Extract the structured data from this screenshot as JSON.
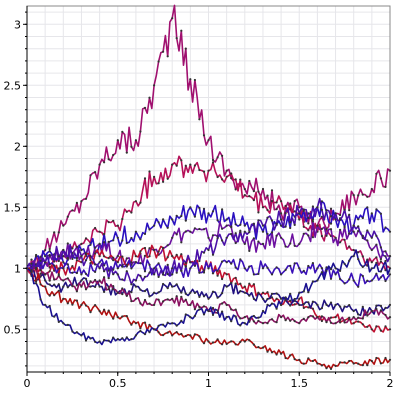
{
  "chart_data": {
    "type": "line",
    "title": "",
    "xlabel": "",
    "ylabel": "",
    "xlim": [
      0,
      2.0
    ],
    "ylim": [
      0.15,
      3.15
    ],
    "grid": true,
    "x_ticks": [
      0,
      0.5,
      1,
      1.5,
      2
    ],
    "x_tick_labels": [
      "0",
      "0.5",
      "1",
      "1.5",
      "2"
    ],
    "y_ticks": [
      0.5,
      1,
      1.5,
      2,
      2.5,
      3
    ],
    "y_tick_labels": [
      "0.5",
      "1",
      "1.5",
      "2",
      "2.5",
      "3"
    ],
    "x": [
      0,
      0.1,
      0.2,
      0.3,
      0.4,
      0.5,
      0.6,
      0.7,
      0.8,
      0.9,
      1.0,
      1.1,
      1.2,
      1.3,
      1.4,
      1.5,
      1.6,
      1.7,
      1.8,
      1.9,
      2.0
    ],
    "series": [
      {
        "color": "#a0106f",
        "values": [
          1.0,
          1.15,
          1.35,
          1.55,
          1.85,
          2.05,
          2.05,
          2.5,
          3.05,
          2.55,
          2.05,
          1.8,
          1.65,
          1.65,
          1.45,
          1.5,
          1.35,
          1.45,
          1.6,
          1.65,
          1.8
        ]
      },
      {
        "color": "#b51058",
        "values": [
          1.0,
          1.05,
          1.1,
          1.2,
          1.3,
          1.35,
          1.55,
          1.75,
          1.85,
          1.85,
          1.8,
          1.75,
          1.6,
          1.5,
          1.55,
          1.4,
          1.3,
          1.25,
          1.15,
          1.05,
          1.0
        ]
      },
      {
        "color": "#2a10c0",
        "values": [
          1.0,
          1.1,
          1.05,
          1.15,
          1.2,
          1.25,
          1.3,
          1.35,
          1.4,
          1.5,
          1.45,
          1.4,
          1.35,
          1.3,
          1.35,
          1.45,
          1.5,
          1.4,
          1.35,
          1.45,
          1.3
        ]
      },
      {
        "color": "#6c10a0",
        "values": [
          1.0,
          1.05,
          1.15,
          1.1,
          1.2,
          1.1,
          1.05,
          1.15,
          1.25,
          1.3,
          1.25,
          1.35,
          1.2,
          1.2,
          1.25,
          1.2,
          1.35,
          1.25,
          1.3,
          1.15,
          1.1
        ]
      },
      {
        "color": "#c01030",
        "values": [
          1.0,
          0.95,
          1.0,
          1.05,
          1.1,
          1.05,
          1.1,
          1.15,
          1.1,
          1.05,
          1.0,
          0.95,
          0.85,
          0.8,
          0.7,
          0.75,
          0.6,
          0.6,
          0.55,
          0.5,
          0.5
        ]
      },
      {
        "color": "#3a10b8",
        "values": [
          1.0,
          1.05,
          1.0,
          0.95,
          1.05,
          1.0,
          1.05,
          1.0,
          0.95,
          1.0,
          1.0,
          1.05,
          1.0,
          1.0,
          0.95,
          1.0,
          1.0,
          0.95,
          0.9,
          0.9,
          0.95
        ]
      },
      {
        "color": "#201080",
        "values": [
          1.0,
          0.9,
          0.85,
          0.9,
          0.85,
          0.8,
          0.85,
          0.8,
          0.85,
          0.8,
          0.75,
          0.85,
          0.8,
          0.75,
          0.75,
          0.7,
          0.7,
          0.7,
          0.65,
          0.65,
          0.7
        ]
      },
      {
        "color": "#8a1060",
        "values": [
          1.0,
          0.95,
          0.9,
          0.85,
          0.9,
          0.8,
          0.75,
          0.7,
          0.75,
          0.7,
          0.65,
          0.7,
          0.6,
          0.55,
          0.6,
          0.55,
          0.6,
          0.55,
          0.6,
          0.65,
          0.6
        ]
      },
      {
        "color": "#b01010",
        "values": [
          1.0,
          0.85,
          0.75,
          0.7,
          0.65,
          0.6,
          0.55,
          0.5,
          0.45,
          0.45,
          0.4,
          0.38,
          0.4,
          0.35,
          0.3,
          0.25,
          0.22,
          0.2,
          0.22,
          0.24,
          0.25
        ]
      },
      {
        "color": "#1a1090",
        "values": [
          1.0,
          0.7,
          0.55,
          0.45,
          0.4,
          0.42,
          0.45,
          0.5,
          0.55,
          0.6,
          0.65,
          0.6,
          0.55,
          0.65,
          0.7,
          0.8,
          0.9,
          1.0,
          1.1,
          1.0,
          1.0
        ]
      },
      {
        "color": "#4a10a8",
        "values": [
          1.0,
          1.05,
          1.15,
          1.1,
          1.0,
          0.95,
          0.9,
          0.95,
          1.0,
          1.05,
          1.15,
          1.25,
          1.3,
          1.35,
          1.4,
          1.45,
          1.5,
          1.45,
          1.35,
          1.25,
          1.1
        ]
      }
    ]
  }
}
